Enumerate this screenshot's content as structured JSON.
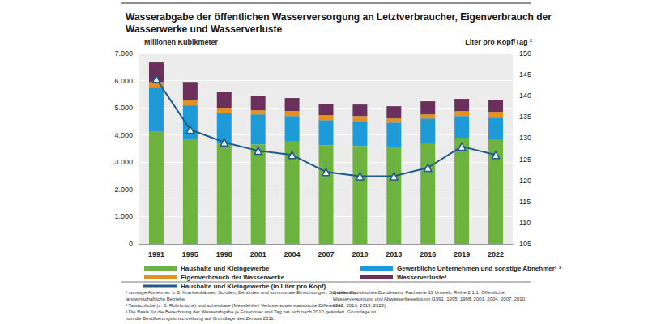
{
  "chart_data": {
    "type": "bar",
    "title": "Wasserabgabe der öffentlichen Wasserversorgung an Letztverbraucher, Eigenverbrauch der\nWasserwerke und Wasserverluste",
    "y_label": "Millionen Kubikmeter",
    "y2_label": "Liter pro Kopf/Tag ²",
    "categories": [
      "1991",
      "1995",
      "1998",
      "2001",
      "2004",
      "2007",
      "2010",
      "2013",
      "2016",
      "2019",
      "2022"
    ],
    "series": [
      {
        "name": "Haushalte und Kleingewerbe",
        "type": "bar",
        "color": "#6cb33f",
        "values": [
          4140,
          3870,
          3720,
          3660,
          3780,
          3630,
          3600,
          3570,
          3690,
          3900,
          3840
        ]
      },
      {
        "name": "Gewerbliche Unternehmen und sonstige Abnehmer¹ ³",
        "type": "bar",
        "color": "#1e9ad6",
        "values": [
          1600,
          1220,
          1100,
          1100,
          920,
          920,
          920,
          890,
          920,
          800,
          800
        ]
      },
      {
        "name": "Eigenverbrauch der Wasserwerke",
        "type": "bar",
        "color": "#e8901f",
        "values": [
          210,
          180,
          180,
          150,
          180,
          180,
          180,
          150,
          150,
          180,
          210
        ]
      },
      {
        "name": "Wasserverluste³",
        "type": "bar",
        "color": "#6b2f5b",
        "values": [
          720,
          680,
          600,
          540,
          480,
          420,
          420,
          450,
          480,
          450,
          450
        ]
      },
      {
        "name": "Haushalte und Kleingewerbe (in Liter pro Kopf)",
        "type": "line",
        "axis": "y2",
        "color": "#1d5b8a",
        "marker": "triangle",
        "values": [
          144,
          132,
          129,
          127,
          126,
          122,
          121,
          121,
          123,
          128,
          126
        ]
      }
    ],
    "stacked": true,
    "ylim": [
      0,
      7000
    ],
    "yticks": [
      0,
      {
        "value": 1000,
        "label": "1.000"
      },
      {
        "value": 2000,
        "label": "2.000"
      },
      {
        "value": 3000,
        "label": "3.000"
      },
      {
        "value": 4000,
        "label": "4.000"
      },
      {
        "value": 5000,
        "label": "5.000"
      },
      {
        "value": 6000,
        "label": "6.000"
      },
      {
        "value": 7000,
        "label": "7.000"
      }
    ],
    "y2lim": [
      105,
      150
    ],
    "y2ticks": [
      105,
      110,
      115,
      120,
      125,
      130,
      135,
      140,
      145,
      150
    ],
    "grid": true,
    "legend": "bottom",
    "footnotes": [
      "¹ sonstige Abnehmer: z.B. Krankenhäuser, Schulen, Behörden und kommunale Einrichtungen, Bundeswehr,\nlandwirtschaftliche Betriebe.",
      "² Tatsächliche (z. B. Rohrbrüche) und scheinbare (Messfehler) Verluste sowie statistische Differenzen",
      "³ Die Basis für die Berechnung der Wasserabgabe je Einwohner und Tag hat sich nach 2010 geändert. Grundlage ist\nnun die Bevölkerungsfortschreibung auf Grundlage des Zensus 2011."
    ],
    "source": "Quelle: Statistisches Bundesamt, Fachserie 19 Umwelt, Reihe 2.1.1  Öffentliche\nWasserversorgung und Abwasserbeseitigung (1991, 1995, 1998, 2001, 2004, 2007, 2010,\n2013, 2016, 2019, 2022)"
  }
}
